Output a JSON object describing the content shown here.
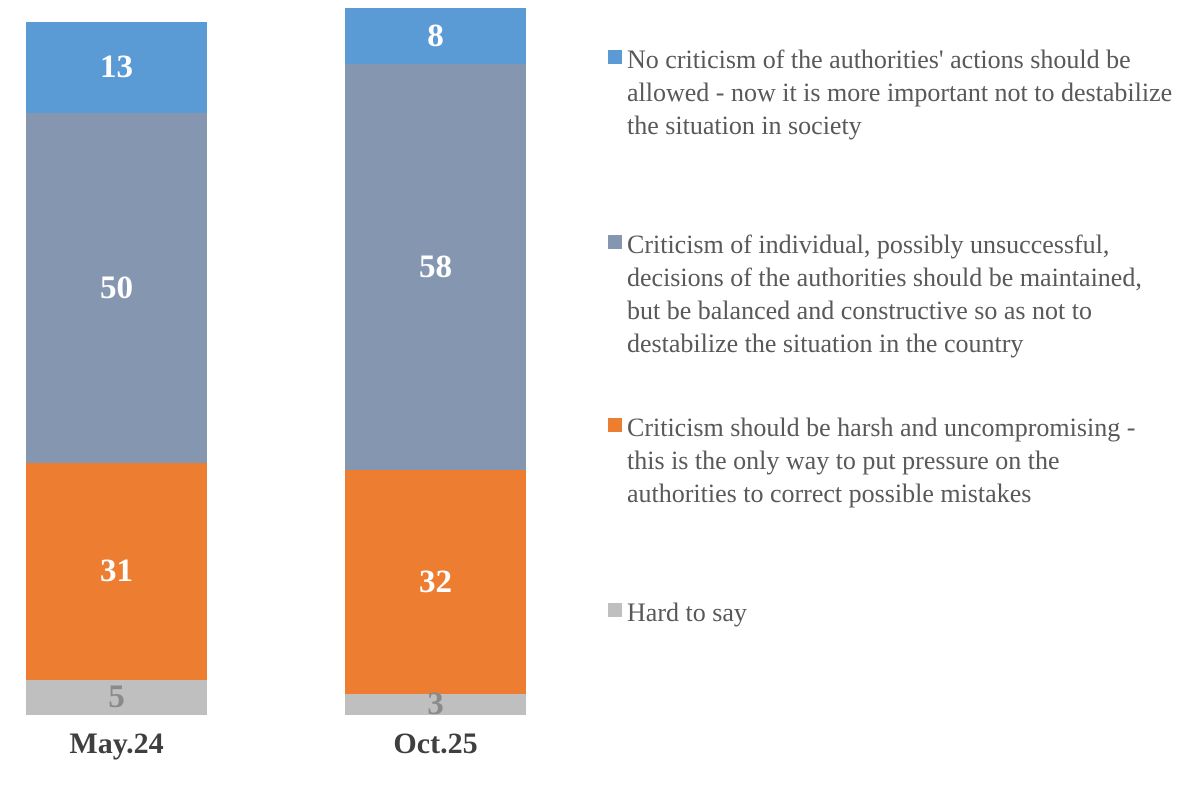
{
  "chart_data": {
    "type": "bar",
    "stacked": true,
    "orientation": "vertical",
    "grid": false,
    "axes_visible": false,
    "legend_position": "right",
    "categories": [
      "May.24",
      "Oct.25"
    ],
    "series": [
      {
        "name": "No criticism of the authorities' actions should be allowed - now it is more important not to destabilize the situation in society",
        "color": "#5b9bd5",
        "label_color": "#ffffff",
        "values": [
          13,
          8
        ]
      },
      {
        "name": "Criticism of individual, possibly unsuccessful, decisions of the authorities should be maintained, but be balanced and constructive so as not to destabilize the situation in the country",
        "color": "#8496b0",
        "label_color": "#ffffff",
        "values": [
          50,
          58
        ]
      },
      {
        "name": "Criticism should be harsh and uncompromising - this is the only way to put pressure on the authorities to correct possible mistakes",
        "color": "#ed7d31",
        "label_color": "#ffffff",
        "values": [
          31,
          32
        ]
      },
      {
        "name": "Hard to say",
        "color": "#bfbfbf",
        "label_color": "#8a8a8a",
        "values": [
          5,
          3
        ]
      }
    ],
    "style": {
      "category_label_color": "#3f3f3f",
      "legend_text_color": "#595959",
      "background": "#ffffff"
    }
  }
}
